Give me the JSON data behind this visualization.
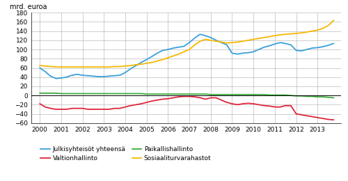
{
  "title": "mrd. euroa",
  "ylim": [
    -60,
    180
  ],
  "yticks": [
    -60,
    -40,
    -20,
    0,
    20,
    40,
    60,
    80,
    100,
    120,
    140,
    160,
    180
  ],
  "legend": [
    {
      "label": "Julkisyhteisöt yhteensä",
      "color": "#38a0dc"
    },
    {
      "label": "Valtionhallinto",
      "color": "#e0253a"
    },
    {
      "label": "Paikallishallinto",
      "color": "#3caa3c"
    },
    {
      "label": "Sosiaaliturvarahastot",
      "color": "#f5b800"
    }
  ],
  "blue": [
    60,
    52,
    42,
    37,
    38,
    40,
    44,
    46,
    44,
    43,
    42,
    41,
    41,
    42,
    43,
    44,
    50,
    58,
    65,
    72,
    78,
    85,
    92,
    98,
    100,
    103,
    105,
    107,
    115,
    125,
    133,
    130,
    126,
    120,
    115,
    110,
    92,
    90,
    92,
    93,
    95,
    100,
    105,
    108,
    112,
    115,
    113,
    110,
    98,
    97,
    100,
    103,
    104,
    106,
    109,
    113
  ],
  "red": [
    -18,
    -25,
    -28,
    -30,
    -30,
    -30,
    -28,
    -28,
    -28,
    -30,
    -30,
    -30,
    -30,
    -30,
    -28,
    -28,
    -25,
    -22,
    -20,
    -18,
    -15,
    -12,
    -10,
    -8,
    -7,
    -5,
    -3,
    -2,
    -2,
    -3,
    -5,
    -8,
    -5,
    -5,
    -10,
    -15,
    -18,
    -20,
    -18,
    -17,
    -18,
    -20,
    -22,
    -23,
    -25,
    -25,
    -22,
    -22,
    -40,
    -42,
    -44,
    -46,
    -48,
    -50,
    -52,
    -53
  ],
  "green": [
    5,
    5,
    5,
    5,
    4,
    4,
    4,
    4,
    4,
    4,
    4,
    4,
    4,
    4,
    4,
    4,
    4,
    4,
    4,
    4,
    3,
    3,
    3,
    3,
    3,
    3,
    3,
    3,
    3,
    3,
    3,
    3,
    2,
    2,
    2,
    2,
    2,
    2,
    2,
    2,
    2,
    2,
    2,
    1,
    1,
    1,
    1,
    0,
    -1,
    -1,
    -2,
    -2,
    -3,
    -3,
    -4,
    -5
  ],
  "yellow": [
    65,
    64,
    63,
    62,
    62,
    62,
    62,
    62,
    62,
    62,
    62,
    62,
    62,
    62,
    63,
    63,
    64,
    65,
    67,
    68,
    70,
    72,
    75,
    78,
    82,
    86,
    90,
    95,
    100,
    110,
    118,
    122,
    120,
    118,
    116,
    114,
    115,
    116,
    118,
    120,
    122,
    124,
    126,
    128,
    130,
    132,
    133,
    134,
    135,
    136,
    138,
    140,
    142,
    146,
    152,
    163
  ]
}
